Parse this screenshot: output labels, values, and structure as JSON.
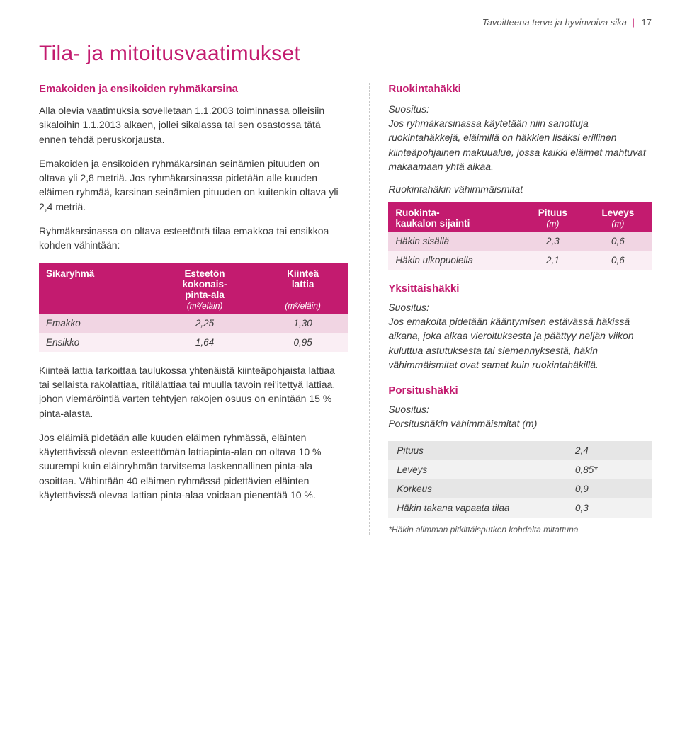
{
  "header": {
    "text": "Tavoitteena terve ja hyvinvoiva sika",
    "page": "17",
    "bar": "|"
  },
  "title": "Tila- ja mitoitusvaatimukset",
  "left": {
    "subhead": "Emakoiden ja ensikoiden ryhmäkarsina",
    "p1": "Alla olevia vaatimuksia sovelletaan 1.1.2003 toiminnassa olleisiin sikaloihin 1.1.2013 alkaen, jollei sikalassa tai sen osastossa tätä ennen tehdä peruskorjausta.",
    "p2": "Emakoiden ja ensikoiden ryhmäkarsinan seinämien pituuden on oltava yli 2,8 metriä. Jos ryhmäkarsinassa pidetään alle kuuden eläimen ryhmää, karsinan seinämien pituuden on kuitenkin oltava yli 2,4 metriä.",
    "p3": "Ryhmäkarsinassa on oltava esteetöntä tilaa emakkoa tai ensikkoa kohden vähintään:",
    "table1": {
      "cols": [
        {
          "h1": "Sikaryhmä",
          "h2": ""
        },
        {
          "h1": "Esteetön",
          "h1b": "kokonais-",
          "h1c": "pinta-ala",
          "h2": "(m²/eläin)"
        },
        {
          "h1": "Kiinteä",
          "h1b": "lattia",
          "h2": "(m²/eläin)"
        }
      ],
      "rows": [
        [
          "Emakko",
          "2,25",
          "1,30"
        ],
        [
          "Ensikko",
          "1,64",
          "0,95"
        ]
      ]
    },
    "p4": "Kiinteä lattia tarkoittaa taulukossa yhtenäistä kiinteäpohjaista lattiaa tai sellaista rakolattiaa, ritilälattiaa tai muulla tavoin rei'itettyä lattiaa, johon viemäröintiä varten tehtyjen rakojen osuus on enintään 15 % pinta-alasta.",
    "p5": "Jos eläimiä pidetään alle kuuden eläimen ryhmässä, eläinten käytettävissä olevan esteettömän lattiapinta-alan on oltava 10 % suurempi kuin eläinryhmän tarvitsema laskennallinen pinta-ala osoittaa. Vähintään 40 eläimen ryhmässä pidettävien eläinten käytettävissä olevaa lattian pinta-alaa voidaan pienentää 10 %."
  },
  "right": {
    "h1": "Ruokintahäkki",
    "rec1_label": "Suositus:",
    "rec1": "Jos ryhmäkarsinassa käytetään niin sanottuja ruokintahäkkejä, eläimillä on häkkien lisäksi erillinen kiinteäpohjainen makuualue, jossa kaikki eläimet mahtuvat makaamaan yhtä aikaa.",
    "ital1": "Ruokintahäkin vähimmäismitat",
    "table2": {
      "cols": [
        {
          "h1": "Ruokinta-",
          "h1b": "kaukalon sijainti"
        },
        {
          "h1": "Pituus",
          "unit": "(m)"
        },
        {
          "h1": "Leveys",
          "unit": "(m)"
        }
      ],
      "rows": [
        [
          "Häkin sisällä",
          "2,3",
          "0,6"
        ],
        [
          "Häkin ulkopuolella",
          "2,1",
          "0,6"
        ]
      ]
    },
    "h2": "Yksittäishäkki",
    "rec2_label": "Suositus:",
    "rec2": "Jos emakoita pidetään kääntymisen estävässä häkissä aikana, joka alkaa vieroituksesta ja päättyy neljän viikon kuluttua astutuksesta tai siemennyksestä, häkin vähimmäismitat ovat samat kuin ruokintahäkillä.",
    "h3": "Porsitushäkki",
    "rec3_label": "Suositus:",
    "rec3": "Porsitushäkin vähimmäismitat (m)",
    "table3": {
      "rows": [
        [
          "Pituus",
          "2,4"
        ],
        [
          "Leveys",
          "0,85*"
        ],
        [
          "Korkeus",
          "0,9"
        ],
        [
          "Häkin takana vapaata tilaa",
          "0,3"
        ]
      ]
    },
    "footnote": "*Häkin alimman pitkittäisputken kohdalta mitattuna"
  }
}
